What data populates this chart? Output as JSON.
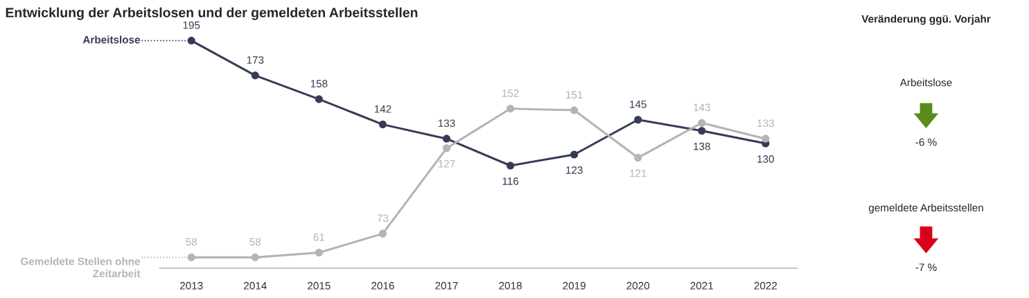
{
  "chart_data": [
    {
      "type": "line",
      "title": "Entwicklung der Arbeitslosen und der gemeldeten Arbeitsstellen",
      "categories": [
        "2013",
        "2014",
        "2015",
        "2016",
        "2017",
        "2018",
        "2019",
        "2020",
        "2021",
        "2022"
      ],
      "series": [
        {
          "name": "Arbeitslose",
          "color": "#363c55",
          "values": [
            195,
            173,
            158,
            142,
            133,
            116,
            123,
            145,
            138,
            130
          ]
        },
        {
          "name": "Gemeldete Stellen ohne Zeitarbeit",
          "color": "#b4b4b4",
          "values": [
            58,
            58,
            61,
            73,
            127,
            152,
            151,
            121,
            143,
            133
          ]
        }
      ],
      "tick_labels": "x",
      "data_labels": true,
      "marker": "circle",
      "line_style": "solid",
      "grid": false,
      "legend": "left"
    },
    {
      "type": "other",
      "title": "Veränderung ggü. Vorjahr",
      "categories": [
        "Arbeitslose",
        "gemeldete Arbeitsstellen"
      ],
      "values": [
        -6,
        -7
      ],
      "value_labels": [
        "-6 %",
        "-7 %"
      ],
      "colors": [
        "#5b8c1a",
        "#d9001b"
      ]
    }
  ]
}
